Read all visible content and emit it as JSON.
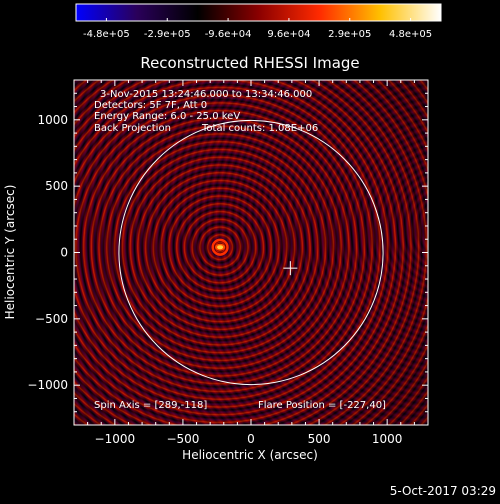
{
  "colorbar": {
    "tick_labels": [
      "-4.8e+05",
      "-2.9e+05",
      "-9.6e+04",
      "9.6e+04",
      "2.9e+05",
      "4.8e+05"
    ],
    "colors": [
      "#0000ff",
      "#2a005a",
      "#000000",
      "#8a0000",
      "#ff2a00",
      "#ffc000",
      "#ffffff"
    ]
  },
  "title": "Reconstructed RHESSI Image",
  "annotations": {
    "time_range": "3-Nov-2015 13:24:46.000 to 13:34:46.000",
    "detectors": "Detectors: 5F 7F, Att 0",
    "energy": "Energy Range: 6.0 - 25.0 keV",
    "method": "Back Projection",
    "counts": "Total counts: 1.08E+06",
    "spin_axis": "Spin Axis = [289,-118]",
    "flare_position": "Flare Position = [-227,40]"
  },
  "axes": {
    "xlabel": "Heliocentric X (arcsec)",
    "ylabel": "Heliocentric Y (arcsec)",
    "xlim": [
      -1300,
      1300
    ],
    "ylim": [
      -1300,
      1300
    ],
    "x_ticks": [
      -1000,
      -500,
      0,
      500,
      1000
    ],
    "y_ticks": [
      -1000,
      -500,
      0,
      500,
      1000
    ],
    "x_tick_labels": [
      "−1000",
      "−500",
      "0",
      "500",
      "1000"
    ],
    "y_tick_labels": [
      "−1000",
      "−500",
      "0",
      "500",
      "1000"
    ]
  },
  "features": {
    "flare_center": [
      -227,
      40
    ],
    "spin_axis": [
      289,
      -118
    ],
    "solar_disk_center": [
      0,
      0
    ],
    "solar_disk_radius": 970,
    "ring_spacing": 57
  },
  "timestamp": "5-Oct-2017 03:29"
}
